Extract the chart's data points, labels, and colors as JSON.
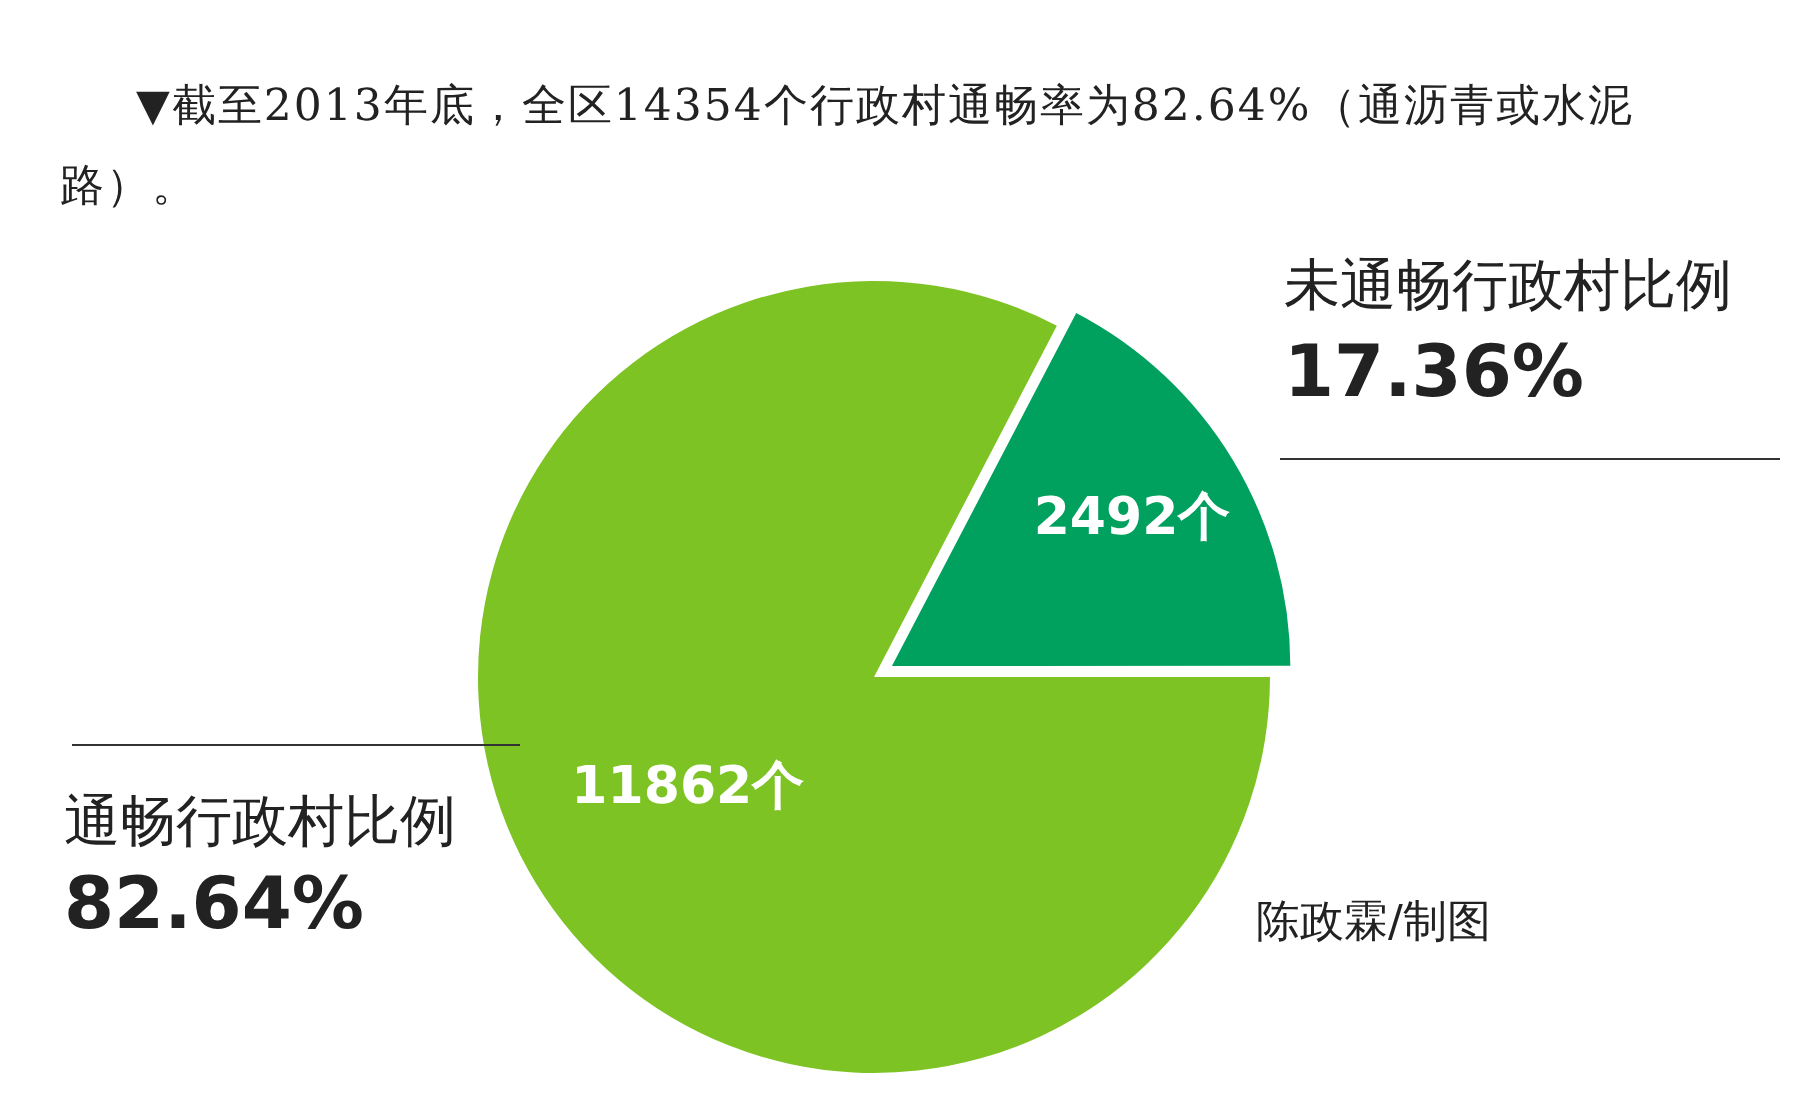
{
  "chart_data": {
    "type": "pie",
    "title": "▼截至2013年底，全区14354个行政村通畅率为82.64%（通沥青或水泥路）。",
    "categories": [
      "未通畅行政村比例",
      "通畅行政村比例"
    ],
    "values": [
      2492,
      11862
    ],
    "value_labels": [
      "2492个",
      "11862个"
    ],
    "colors": [
      "#00a05e",
      "#7dc323"
    ],
    "annotations": [
      "17.36%",
      "82.64%",
      "陈政霖/制图"
    ],
    "legend": false
  }
}
